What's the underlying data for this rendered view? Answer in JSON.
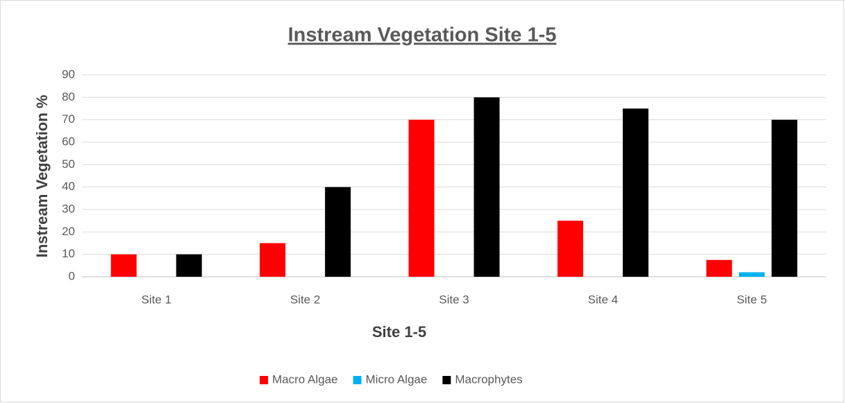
{
  "chart_data": {
    "type": "bar",
    "title": "Instream Vegetation Site 1-5",
    "x_label": "Site 1-5",
    "y_label": "Instream Vegetation %",
    "categories": [
      "Site 1",
      "Site 2",
      "Site 3",
      "Site 4",
      "Site 5"
    ],
    "series": [
      {
        "name": "Macro Algae",
        "color": "#ff0000",
        "values": [
          10,
          15,
          70,
          25,
          7.5
        ]
      },
      {
        "name": "Micro Algae",
        "color": "#00b0f0",
        "values": [
          0,
          0,
          0,
          0,
          2
        ]
      },
      {
        "name": "Macrophytes",
        "color": "#000000",
        "values": [
          10,
          40,
          80,
          75,
          70
        ]
      }
    ],
    "ylim": [
      0,
      90
    ],
    "yticks": [
      0,
      10,
      20,
      30,
      40,
      50,
      60,
      70,
      80,
      90
    ],
    "grid": true,
    "legend": "bottom"
  }
}
